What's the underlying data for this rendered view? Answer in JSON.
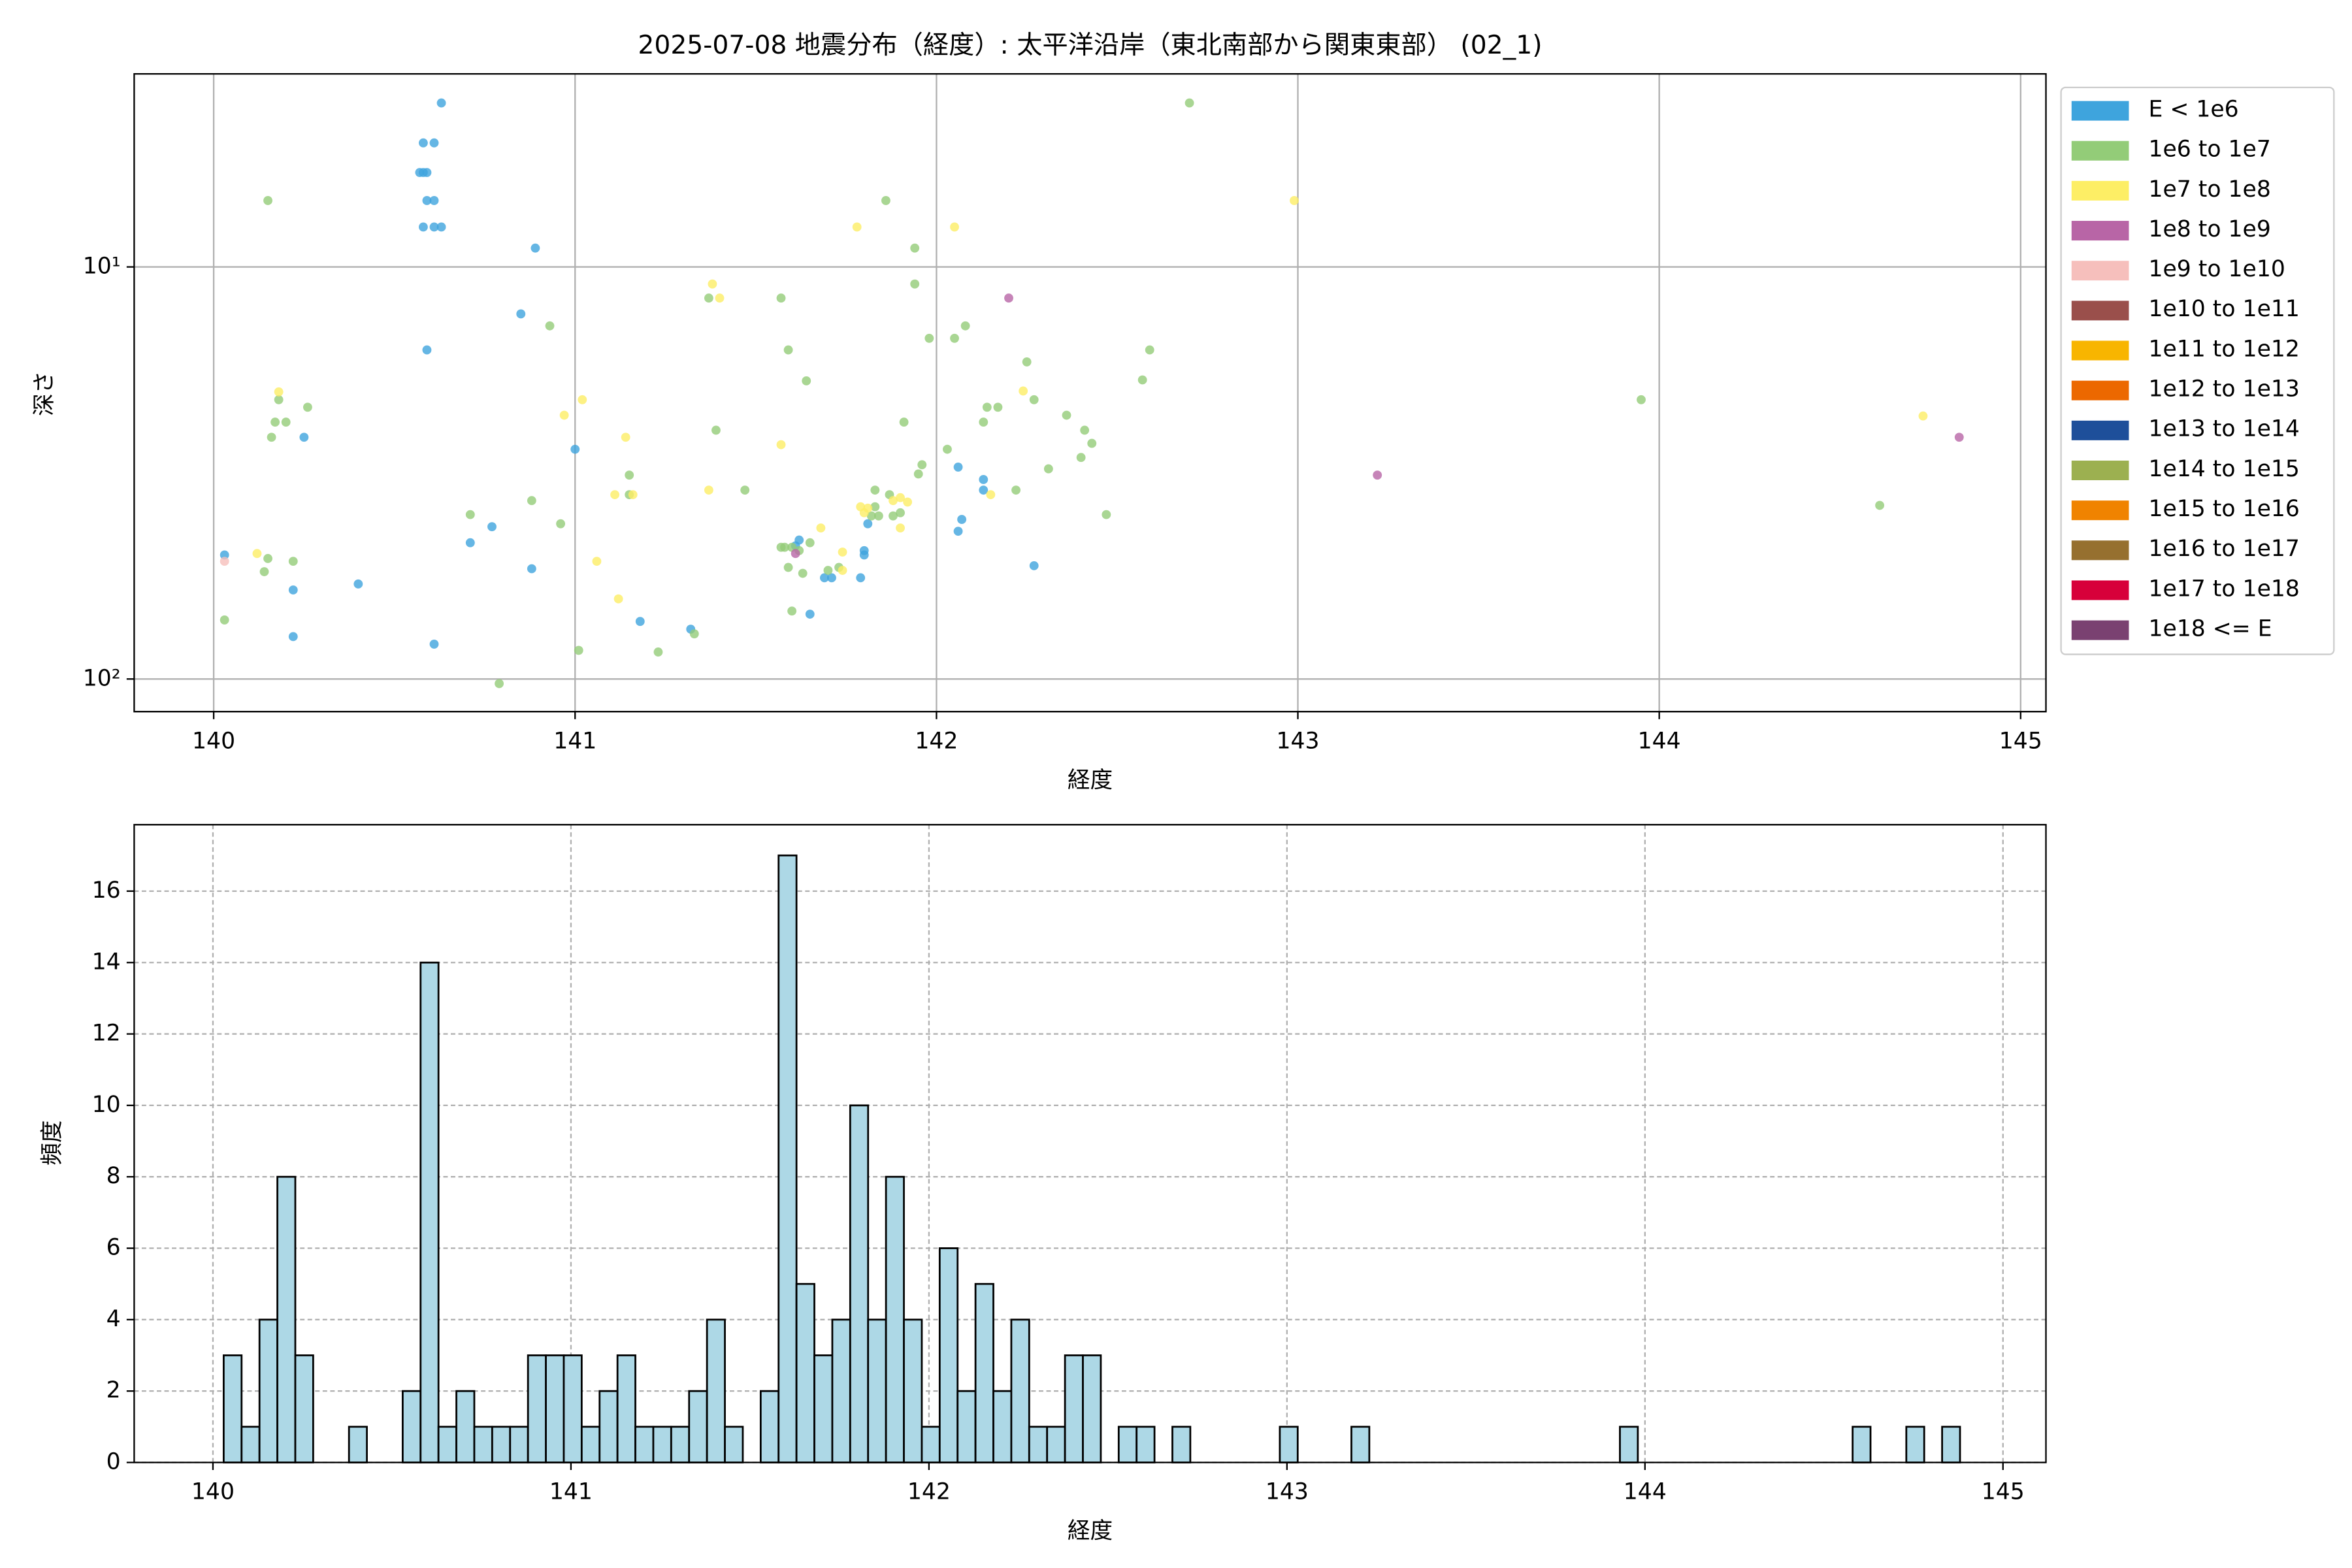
{
  "chart_data": [
    {
      "type": "scatter",
      "title": "2025-07-08 地震分布（経度）: 太平洋沿岸（東北南部から関東東部） (02_1)",
      "x_label": "経度",
      "y_label": "深さ",
      "xlim": [
        139.78,
        145.07
      ],
      "xticks": [
        140,
        141,
        142,
        143,
        144,
        145
      ],
      "ylim": [
        3.4,
        120
      ],
      "y_log": true,
      "y_inverted": true,
      "yticks": [
        {
          "value": 10,
          "label": "10¹"
        },
        {
          "value": 100,
          "label": "10²"
        }
      ],
      "grid": true,
      "legend": "outside right",
      "series": [
        {
          "name": "E < 1e6",
          "color": "#3ea4dd",
          "x": [
            140.03,
            140.22,
            140.22,
            140.25,
            140.4,
            140.63,
            140.58,
            140.61,
            140.57,
            140.59,
            140.58,
            140.59,
            140.61,
            140.58,
            140.61,
            140.63,
            140.59,
            140.61,
            140.71,
            140.77,
            140.85,
            140.88,
            140.89,
            141.0,
            141.18,
            141.32,
            141.62,
            141.61,
            141.65,
            141.69,
            141.71,
            141.79,
            141.8,
            141.8,
            141.81,
            142.06,
            142.06,
            142.07,
            142.13,
            142.13,
            142.27
          ],
          "values": [
            50.0,
            60.8,
            78.9,
            25.9,
            58.8,
            4.0,
            5.0,
            5.0,
            5.9,
            5.9,
            5.9,
            6.9,
            6.9,
            8.0,
            8.0,
            8.0,
            15.9,
            82.3,
            46.7,
            42.7,
            13.0,
            54.0,
            9.0,
            27.7,
            72.5,
            75.7,
            46.0,
            47.5,
            69.6,
            56.8,
            56.8,
            56.8,
            50.0,
            48.8,
            42.0,
            30.6,
            43.8,
            41.0,
            34.8,
            32.8,
            53.1
          ]
        },
        {
          "name": "1e6 to 1e7",
          "color": "#93cc78",
          "x": [
            140.03,
            140.15,
            140.14,
            140.15,
            140.16,
            140.17,
            140.18,
            140.2,
            140.22,
            140.26,
            140.79,
            140.71,
            140.88,
            140.96,
            141.01,
            140.93,
            141.15,
            141.15,
            141.23,
            141.33,
            141.37,
            141.39,
            141.47,
            141.57,
            141.59,
            141.64,
            141.57,
            141.58,
            141.59,
            141.6,
            141.62,
            141.65,
            141.6,
            141.63,
            141.7,
            141.73,
            141.82,
            141.83,
            141.84,
            141.83,
            141.86,
            141.87,
            141.88,
            141.9,
            141.91,
            141.94,
            141.94,
            141.95,
            141.96,
            141.98,
            142.03,
            142.05,
            142.08,
            142.13,
            142.14,
            142.17,
            142.22,
            142.25,
            142.27,
            142.31,
            142.36,
            142.4,
            142.41,
            142.43,
            142.47,
            142.57,
            142.59,
            142.7,
            143.95,
            144.61
          ],
          "values": [
            71.9,
            6.9,
            54.9,
            51.0,
            25.9,
            23.8,
            21.0,
            23.8,
            51.8,
            21.9,
            102.6,
            39.9,
            36.9,
            42.0,
            85.2,
            13.9,
            32.0,
            35.7,
            86.0,
            77.7,
            11.9,
            24.9,
            34.8,
            11.9,
            15.9,
            18.9,
            47.9,
            47.9,
            53.6,
            47.9,
            48.8,
            46.7,
            68.4,
            55.4,
            54.5,
            53.6,
            40.2,
            38.2,
            40.2,
            34.8,
            6.9,
            35.7,
            40.2,
            39.5,
            23.8,
            9.0,
            11.0,
            31.8,
            30.2,
            14.9,
            27.7,
            14.9,
            13.9,
            23.8,
            21.9,
            21.9,
            34.8,
            17.0,
            21.0,
            30.9,
            22.9,
            29.0,
            24.9,
            26.8,
            39.9,
            18.8,
            15.9,
            4.0,
            21.0,
            37.9
          ]
        },
        {
          "name": "1e7 to 1e8",
          "color": "#fdee65",
          "x": [
            140.12,
            140.18,
            140.97,
            141.02,
            141.06,
            141.11,
            141.12,
            141.14,
            141.16,
            141.37,
            141.38,
            141.4,
            141.57,
            141.68,
            141.74,
            141.74,
            141.78,
            141.79,
            141.8,
            141.81,
            141.88,
            141.9,
            141.9,
            141.92,
            142.05,
            142.15,
            142.24,
            142.99,
            144.73
          ],
          "values": [
            49.6,
            20.1,
            22.9,
            21.0,
            51.8,
            35.7,
            63.9,
            25.9,
            35.7,
            34.8,
            11.0,
            11.9,
            27.0,
            43.0,
            49.2,
            54.5,
            8.0,
            38.2,
            39.5,
            38.5,
            36.9,
            36.3,
            43.0,
            37.2,
            8.0,
            35.7,
            20.0,
            6.9,
            23.0
          ]
        },
        {
          "name": "1e8 to 1e9",
          "color": "#b865a6",
          "x": [
            141.61,
            142.2,
            143.22,
            144.83
          ],
          "values": [
            49.6,
            11.9,
            32.0,
            25.9
          ]
        },
        {
          "name": "1e9 to 1e10",
          "color": "#f6bfbc",
          "x": [
            140.03
          ],
          "values": [
            51.8
          ]
        },
        {
          "name": "1e10 to 1e11",
          "color": "#9a4f4b",
          "x": [],
          "values": []
        },
        {
          "name": "1e11 to 1e12",
          "color": "#f8b500",
          "x": [],
          "values": []
        },
        {
          "name": "1e12 to 1e13",
          "color": "#ec6800",
          "x": [],
          "values": []
        },
        {
          "name": "1e13 to 1e14",
          "color": "#1e4f9a",
          "x": [],
          "values": []
        },
        {
          "name": "1e14 to 1e15",
          "color": "#9cb050",
          "x": [],
          "values": []
        },
        {
          "name": "1e15 to 1e16",
          "color": "#f08300",
          "x": [],
          "values": []
        },
        {
          "name": "1e16 to 1e17",
          "color": "#96702f",
          "x": [],
          "values": []
        },
        {
          "name": "1e17 to 1e18",
          "color": "#d7003a",
          "x": [],
          "values": []
        },
        {
          "name": "1e18 <= E",
          "color": "#7a4171",
          "x": [],
          "values": []
        }
      ]
    },
    {
      "type": "histogram",
      "x_label": "経度",
      "y_label": "頻度",
      "color": "#add8e6",
      "edge_color": "#000000",
      "xlim": [
        139.78,
        145.12
      ],
      "xticks": [
        140,
        141,
        142,
        143,
        144,
        145
      ],
      "ylim": [
        0,
        17.86
      ],
      "yticks": [
        0,
        2,
        4,
        6,
        8,
        10,
        12,
        14,
        16
      ],
      "grid": true,
      "bins": [
        140.03,
        140.08,
        140.13,
        140.18,
        140.23,
        140.28,
        140.33,
        140.38,
        140.43,
        140.48,
        140.53,
        140.58,
        140.63,
        140.68,
        140.73,
        140.78,
        140.83,
        140.88,
        140.93,
        140.98,
        141.03,
        141.08,
        141.13,
        141.18,
        141.23,
        141.28,
        141.33,
        141.38,
        141.43,
        141.48,
        141.53,
        141.58,
        141.63,
        141.68,
        141.73,
        141.78,
        141.83,
        141.88,
        141.93,
        141.98,
        142.03,
        142.08,
        142.13,
        142.18,
        142.23,
        142.28,
        142.33,
        142.38,
        142.43,
        142.48,
        142.53,
        142.58,
        142.63,
        142.68,
        142.73,
        142.78,
        142.83,
        142.88,
        142.93,
        142.98,
        143.03,
        143.08,
        143.13,
        143.18,
        143.23,
        143.28,
        143.33,
        143.38,
        143.43,
        143.48,
        143.53,
        143.58,
        143.63,
        143.68,
        143.73,
        143.78,
        143.83,
        143.88,
        143.93,
        143.98,
        144.03,
        144.08,
        144.13,
        144.18,
        144.23,
        144.28,
        144.33,
        144.38,
        144.43,
        144.48,
        144.53,
        144.58,
        144.63,
        144.68,
        144.73,
        144.78,
        144.83,
        144.88
      ],
      "values": [
        3,
        1,
        4,
        8,
        3,
        0,
        0,
        1,
        0,
        0,
        2,
        14,
        1,
        2,
        1,
        1,
        1,
        3,
        3,
        3,
        1,
        2,
        3,
        1,
        1,
        1,
        2,
        4,
        1,
        0,
        2,
        17,
        5,
        3,
        4,
        10,
        4,
        8,
        4,
        1,
        6,
        2,
        5,
        2,
        4,
        1,
        1,
        3,
        3,
        0,
        1,
        1,
        0,
        1,
        0,
        0,
        0,
        0,
        0,
        1,
        0,
        0,
        0,
        1,
        0,
        0,
        0,
        0,
        0,
        0,
        0,
        0,
        0,
        0,
        0,
        0,
        0,
        0,
        1,
        0,
        0,
        0,
        0,
        0,
        0,
        0,
        0,
        0,
        0,
        0,
        0,
        1,
        0,
        0,
        1,
        0,
        1
      ]
    }
  ]
}
